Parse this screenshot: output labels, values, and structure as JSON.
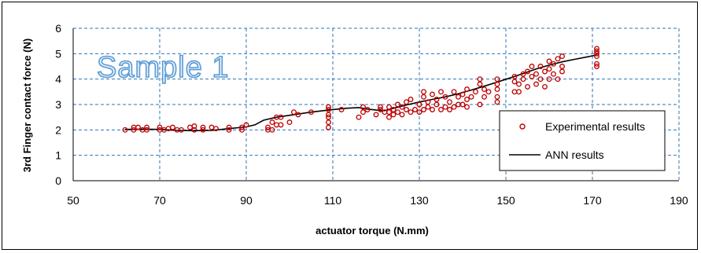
{
  "chart_data": {
    "type": "scatter",
    "title": "",
    "watermark": "Sample 1",
    "xlabel": "actuator torque (N.mm)",
    "ylabel": "3rd Finger contact force (N)",
    "xlim": [
      50,
      190
    ],
    "ylim": [
      0,
      6
    ],
    "x_ticks": [
      "50",
      "70",
      "90",
      "110",
      "130",
      "150",
      "170",
      "190"
    ],
    "y_ticks": [
      "0",
      "1",
      "2",
      "3",
      "4",
      "5",
      "6"
    ],
    "grid": true,
    "grid_style": "dashed",
    "grid_color": "#2e75b6",
    "legend_position": "right",
    "series": [
      {
        "name": "Experimental results",
        "kind": "markers",
        "color": "#c00000",
        "points": [
          [
            62,
            2.0
          ],
          [
            64,
            2.1
          ],
          [
            64,
            2.0
          ],
          [
            65,
            2.1
          ],
          [
            66,
            2.0
          ],
          [
            67,
            2.1
          ],
          [
            67,
            2.0
          ],
          [
            70,
            2.0
          ],
          [
            70,
            2.1
          ],
          [
            71,
            2.0
          ],
          [
            72,
            2.05
          ],
          [
            73,
            2.1
          ],
          [
            74,
            2.0
          ],
          [
            75,
            2.0
          ],
          [
            77,
            2.1
          ],
          [
            78,
            2.0
          ],
          [
            78,
            2.15
          ],
          [
            80,
            2.1
          ],
          [
            80,
            2.0
          ],
          [
            82,
            2.1
          ],
          [
            83,
            2.05
          ],
          [
            86,
            2.1
          ],
          [
            86,
            2.0
          ],
          [
            89,
            2.1
          ],
          [
            89,
            2.0
          ],
          [
            90,
            2.2
          ],
          [
            95,
            2.1
          ],
          [
            95,
            2.0
          ],
          [
            96,
            2.3
          ],
          [
            96,
            2.0
          ],
          [
            97,
            2.5
          ],
          [
            97,
            2.2
          ],
          [
            98,
            2.5
          ],
          [
            98,
            2.2
          ],
          [
            100,
            2.3
          ],
          [
            101,
            2.7
          ],
          [
            102,
            2.6
          ],
          [
            105,
            2.7
          ],
          [
            109,
            2.1
          ],
          [
            109,
            2.3
          ],
          [
            109,
            2.5
          ],
          [
            109,
            2.6
          ],
          [
            109,
            2.8
          ],
          [
            109,
            2.9
          ],
          [
            112,
            2.8
          ],
          [
            116,
            2.5
          ],
          [
            117,
            2.7
          ],
          [
            117,
            2.9
          ],
          [
            118,
            2.8
          ],
          [
            120,
            2.6
          ],
          [
            121,
            2.8
          ],
          [
            121,
            2.9
          ],
          [
            122,
            2.7
          ],
          [
            123,
            2.5
          ],
          [
            123,
            2.7
          ],
          [
            123,
            2.9
          ],
          [
            124,
            2.6
          ],
          [
            124,
            2.8
          ],
          [
            125,
            3.0
          ],
          [
            125,
            2.7
          ],
          [
            126,
            2.9
          ],
          [
            126,
            2.6
          ],
          [
            127,
            2.8
          ],
          [
            127,
            3.1
          ],
          [
            128,
            2.7
          ],
          [
            128,
            3.2
          ],
          [
            129,
            2.8
          ],
          [
            130,
            3.0
          ],
          [
            130,
            2.7
          ],
          [
            131,
            2.8
          ],
          [
            131,
            3.3
          ],
          [
            131,
            3.5
          ],
          [
            132,
            2.9
          ],
          [
            132,
            3.1
          ],
          [
            133,
            2.8
          ],
          [
            133,
            3.4
          ],
          [
            134,
            3.0
          ],
          [
            134,
            3.2
          ],
          [
            135,
            2.8
          ],
          [
            135,
            3.5
          ],
          [
            136,
            2.9
          ],
          [
            136,
            3.3
          ],
          [
            137,
            3.1
          ],
          [
            137,
            2.8
          ],
          [
            138,
            2.9
          ],
          [
            138,
            3.5
          ],
          [
            139,
            3.0
          ],
          [
            139,
            3.3
          ],
          [
            140,
            3.0
          ],
          [
            140,
            3.4
          ],
          [
            141,
            3.2
          ],
          [
            141,
            2.9
          ],
          [
            141,
            3.6
          ],
          [
            142,
            3.3
          ],
          [
            143,
            3.5
          ],
          [
            144,
            3.0
          ],
          [
            144,
            4.0
          ],
          [
            144,
            3.8
          ],
          [
            145,
            3.3
          ],
          [
            145,
            3.6
          ],
          [
            146,
            3.5
          ],
          [
            148,
            3.1
          ],
          [
            148,
            3.3
          ],
          [
            148,
            3.6
          ],
          [
            148,
            3.8
          ],
          [
            148,
            4.0
          ],
          [
            152,
            3.5
          ],
          [
            152,
            3.9
          ],
          [
            152,
            4.1
          ],
          [
            153,
            3.5
          ],
          [
            153,
            3.8
          ],
          [
            154,
            4.0
          ],
          [
            154,
            4.2
          ],
          [
            155,
            3.7
          ],
          [
            155,
            4.3
          ],
          [
            156,
            4.1
          ],
          [
            156,
            4.5
          ],
          [
            157,
            3.8
          ],
          [
            157,
            4.2
          ],
          [
            158,
            4.0
          ],
          [
            158,
            4.5
          ],
          [
            159,
            3.7
          ],
          [
            159,
            4.3
          ],
          [
            160,
            4.0
          ],
          [
            160,
            4.4
          ],
          [
            160,
            4.7
          ],
          [
            161,
            4.2
          ],
          [
            161,
            4.6
          ],
          [
            162,
            4.0
          ],
          [
            162,
            4.8
          ],
          [
            163,
            4.3
          ],
          [
            163,
            4.5
          ],
          [
            163,
            4.9
          ],
          [
            171,
            4.5
          ],
          [
            171,
            4.6
          ],
          [
            171,
            4.9
          ],
          [
            171,
            5.0
          ],
          [
            171,
            5.1
          ],
          [
            171,
            5.2
          ]
        ]
      },
      {
        "name": "ANN results",
        "kind": "line",
        "color": "#000000",
        "points": [
          [
            62,
            2.02
          ],
          [
            66,
            2.03
          ],
          [
            70,
            2.02
          ],
          [
            74,
            1.98
          ],
          [
            78,
            1.97
          ],
          [
            82,
            1.98
          ],
          [
            86,
            2.05
          ],
          [
            90,
            2.12
          ],
          [
            92,
            2.2
          ],
          [
            94,
            2.38
          ],
          [
            97,
            2.5
          ],
          [
            101,
            2.6
          ],
          [
            105,
            2.7
          ],
          [
            109,
            2.78
          ],
          [
            113,
            2.85
          ],
          [
            116,
            2.88
          ],
          [
            118,
            2.82
          ],
          [
            120,
            2.78
          ],
          [
            122,
            2.76
          ],
          [
            124,
            2.85
          ],
          [
            127,
            2.98
          ],
          [
            130,
            3.1
          ],
          [
            133,
            3.2
          ],
          [
            136,
            3.3
          ],
          [
            139,
            3.42
          ],
          [
            142,
            3.57
          ],
          [
            145,
            3.72
          ],
          [
            148,
            3.88
          ],
          [
            151,
            4.05
          ],
          [
            154,
            4.22
          ],
          [
            157,
            4.4
          ],
          [
            160,
            4.55
          ],
          [
            163,
            4.68
          ],
          [
            166,
            4.78
          ],
          [
            169,
            4.88
          ],
          [
            171,
            4.95
          ]
        ]
      }
    ]
  }
}
